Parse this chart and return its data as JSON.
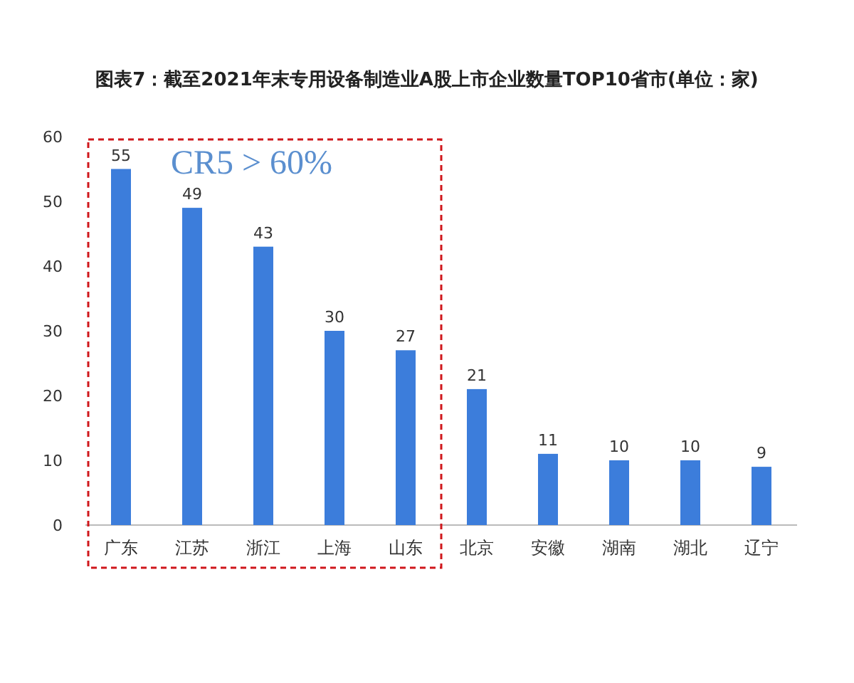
{
  "chart_data": {
    "type": "bar",
    "title": "图表7：截至2021年末专用设备制造业A股上市企业数量TOP10省市(单位：家)",
    "categories": [
      "广东",
      "江苏",
      "浙江",
      "上海",
      "山东",
      "北京",
      "安徽",
      "湖南",
      "湖北",
      "辽宁"
    ],
    "values": [
      55,
      49,
      43,
      30,
      27,
      21,
      11,
      10,
      10,
      9
    ],
    "color": "#3c7ddb",
    "ylim": [
      0,
      60
    ],
    "yticks": [
      0,
      10,
      20,
      30,
      40,
      50,
      60
    ],
    "data_labels": true,
    "grid": false,
    "annotations": [
      "CR5 > 60%"
    ]
  }
}
